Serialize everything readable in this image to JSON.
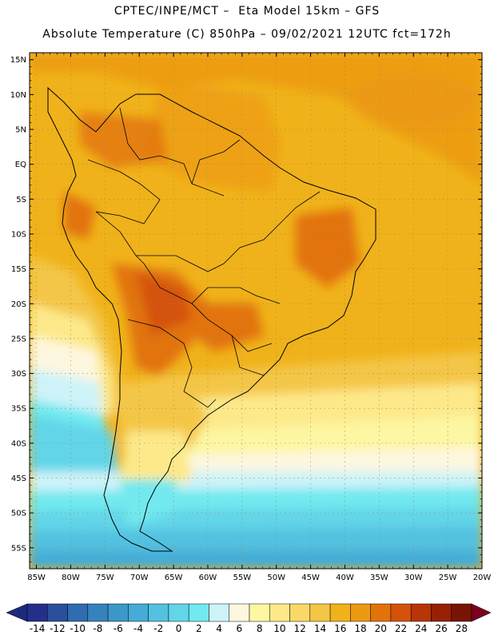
{
  "header": {
    "line1": "CPTEC/INPE/MCT –  Eta Model 15km – GFS",
    "line2": "Absolute Temperature (C) 850hPa – 09/02/2021 12UTC fct=172h"
  },
  "map": {
    "region": "South America",
    "lat_labels": [
      "15N",
      "10N",
      "5N",
      "EQ",
      "5S",
      "10S",
      "15S",
      "20S",
      "25S",
      "30S",
      "35S",
      "40S",
      "45S",
      "50S",
      "55S"
    ],
    "lon_labels": [
      "85W",
      "80W",
      "75W",
      "70W",
      "65W",
      "60W",
      "55W",
      "50W",
      "45W",
      "40W",
      "35W",
      "30W",
      "25W",
      "20W"
    ],
    "lat_range": [
      -58,
      16
    ],
    "lon_range": [
      -86,
      -20
    ]
  },
  "colorbar": {
    "labels": [
      "-14",
      "-12",
      "-10",
      "-8",
      "-6",
      "-4",
      "-2",
      "0",
      "2",
      "4",
      "6",
      "8",
      "10",
      "12",
      "14",
      "16",
      "18",
      "20",
      "22",
      "24",
      "26",
      "28"
    ],
    "colors": [
      "#232f8a",
      "#2a4f9c",
      "#2f6cb0",
      "#3583be",
      "#3b98c9",
      "#44acd6",
      "#53c1e0",
      "#62d5e8",
      "#71e9ef",
      "#cdf3f9",
      "#fdf7df",
      "#fdf6a2",
      "#fde98a",
      "#fad868",
      "#f4c646",
      "#f0b21a",
      "#ec9a12",
      "#e2730b",
      "#d45209",
      "#b93406",
      "#972005",
      "#781404"
    ],
    "under_color": "#1d2a7c",
    "over_color": "#7c0020"
  }
}
